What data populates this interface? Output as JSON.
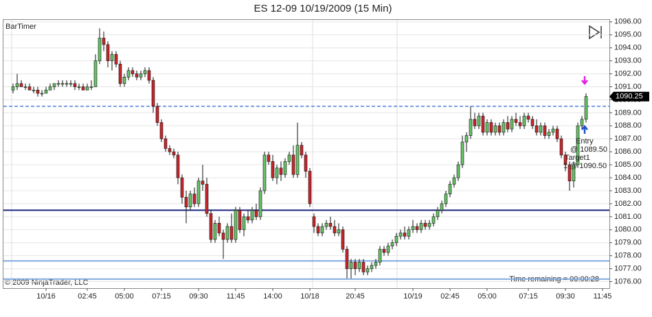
{
  "chart_data": {
    "type": "candlestick",
    "title": "ES 12-09  10/19/2009 (15 Min)",
    "indicator_label": "BarTimer",
    "copyright": "© 2009 NinjaTrader, LLC",
    "timer_text": "Time remaining = 00:00:28",
    "up_color": "#66c266",
    "down_color": "#c8262c",
    "ylim": [
      1075.5,
      1096.15
    ],
    "yticks": [
      {
        "value": 1076,
        "label": "1076.00"
      },
      {
        "value": 1077,
        "label": "1077.00"
      },
      {
        "value": 1078,
        "label": "1078.00"
      },
      {
        "value": 1079,
        "label": "1079.00"
      },
      {
        "value": 1080,
        "label": "1080.00"
      },
      {
        "value": 1081,
        "label": "1081.00"
      },
      {
        "value": 1082,
        "label": "1082.00"
      },
      {
        "value": 1083,
        "label": "1083.00"
      },
      {
        "value": 1084,
        "label": "1084.00"
      },
      {
        "value": 1085,
        "label": "1085.00"
      },
      {
        "value": 1086,
        "label": "1086.00"
      },
      {
        "value": 1087,
        "label": "1087.00"
      },
      {
        "value": 1088,
        "label": "1088.00"
      },
      {
        "value": 1089,
        "label": "1089.00"
      },
      {
        "value": 1090,
        "label": "1090.00"
      },
      {
        "value": 1091,
        "label": "1091.00"
      },
      {
        "value": 1092,
        "label": "1092.00"
      },
      {
        "value": 1093,
        "label": "1093.00"
      },
      {
        "value": 1094,
        "label": "1094.00"
      },
      {
        "value": 1095,
        "label": "1095.00"
      },
      {
        "value": 1096,
        "label": "1096.00"
      }
    ],
    "grid": true,
    "last_price": {
      "value": 1090.25,
      "label": "1090.25"
    },
    "levels": [
      {
        "value": 1089.5,
        "color": "#4a7fd9",
        "dashed": true
      },
      {
        "value": 1081.5,
        "color": "#1a237e",
        "dashed": false
      },
      {
        "value": 1077.6,
        "color": "#7fa8e0",
        "dashed": false
      },
      {
        "value": 1076.2,
        "color": "#7fa8e0",
        "dashed": false
      }
    ],
    "annotations": {
      "entry": "Entry",
      "entry_price": "@ 1089.50",
      "target": "Target1",
      "target_price": "1 @ 1090.50"
    },
    "categories": [
      null,
      null,
      null,
      null,
      null,
      null,
      null,
      null,
      "10/16",
      null,
      null,
      null,
      null,
      null,
      null,
      null,
      null,
      null,
      "02:45",
      null,
      null,
      null,
      null,
      null,
      null,
      null,
      null,
      "05:00",
      null,
      null,
      null,
      null,
      null,
      null,
      null,
      null,
      "07:15",
      null,
      null,
      null,
      null,
      null,
      null,
      null,
      null,
      "09:30",
      null,
      null,
      null,
      null,
      null,
      null,
      null,
      null,
      "11:45",
      null,
      null,
      null,
      null,
      null,
      null,
      null,
      null,
      "14:00",
      null,
      null,
      null,
      null,
      null,
      null,
      null,
      null,
      "10/18",
      null,
      null,
      null,
      null,
      null,
      null,
      null,
      null,
      null,
      null,
      "20:45",
      null,
      null,
      null,
      null,
      null,
      null,
      null,
      null,
      null,
      null,
      null,
      null,
      null,
      "10/19",
      null,
      null,
      null,
      null,
      null,
      null,
      null,
      null,
      "02:45",
      null,
      null,
      null,
      null,
      null,
      null,
      null,
      null,
      "05:00",
      null,
      null,
      null,
      null,
      null,
      null,
      null,
      null,
      null,
      "07:15",
      null,
      null,
      null,
      null,
      null,
      null,
      null,
      null,
      "09:30",
      null,
      null,
      null,
      null,
      null,
      null,
      null,
      null,
      "11:45"
    ],
    "ohlc": [
      [
        1090.75,
        1091.25,
        1090.5,
        1091.0
      ],
      [
        1091.0,
        1092.0,
        1090.75,
        1091.25
      ],
      [
        1091.25,
        1091.5,
        1091.0,
        1091.0
      ],
      [
        1091.0,
        1091.25,
        1090.75,
        1091.0
      ],
      [
        1091.0,
        1091.25,
        1090.75,
        1090.75
      ],
      [
        1090.75,
        1091.0,
        1090.5,
        1090.75
      ],
      [
        1090.75,
        1091.0,
        1090.25,
        1090.5
      ],
      [
        1090.5,
        1090.75,
        1090.25,
        1090.5
      ],
      [
        1090.5,
        1091.0,
        1090.5,
        1090.75
      ],
      [
        1090.75,
        1091.25,
        1090.75,
        1091.0
      ],
      [
        1091.0,
        1091.25,
        1090.75,
        1091.25
      ],
      [
        1091.25,
        1091.5,
        1091.0,
        1091.25
      ],
      [
        1091.25,
        1091.5,
        1091.0,
        1091.25
      ],
      [
        1091.25,
        1091.5,
        1091.0,
        1091.25
      ],
      [
        1091.25,
        1091.5,
        1091.0,
        1091.25
      ],
      [
        1091.25,
        1091.5,
        1090.75,
        1091.0
      ],
      [
        1091.0,
        1091.25,
        1090.75,
        1091.0
      ],
      [
        1091.0,
        1091.25,
        1090.75,
        1090.75
      ],
      [
        1090.75,
        1091.25,
        1090.75,
        1091.0
      ],
      [
        1091.0,
        1091.5,
        1090.75,
        1091.0
      ],
      [
        1091.0,
        1093.5,
        1091.0,
        1093.0
      ],
      [
        1093.0,
        1095.5,
        1092.75,
        1094.75
      ],
      [
        1094.75,
        1095.25,
        1093.75,
        1094.25
      ],
      [
        1094.25,
        1094.5,
        1092.5,
        1093.0
      ],
      [
        1093.0,
        1093.75,
        1092.25,
        1093.5
      ],
      [
        1093.5,
        1093.75,
        1092.5,
        1092.75
      ],
      [
        1092.75,
        1093.0,
        1091.0,
        1091.25
      ],
      [
        1091.25,
        1092.0,
        1091.0,
        1091.75
      ],
      [
        1091.75,
        1092.5,
        1091.5,
        1092.25
      ],
      [
        1092.25,
        1092.5,
        1091.75,
        1092.0
      ],
      [
        1092.0,
        1092.25,
        1091.5,
        1091.75
      ],
      [
        1091.75,
        1092.25,
        1091.5,
        1092.0
      ],
      [
        1092.0,
        1092.5,
        1091.75,
        1092.25
      ],
      [
        1092.25,
        1092.5,
        1091.25,
        1091.5
      ],
      [
        1091.5,
        1091.75,
        1089.0,
        1089.5
      ],
      [
        1089.5,
        1089.75,
        1088.0,
        1088.25
      ],
      [
        1088.25,
        1088.5,
        1086.75,
        1087.0
      ],
      [
        1087.0,
        1087.25,
        1086.0,
        1086.25
      ],
      [
        1086.25,
        1086.5,
        1085.75,
        1086.0
      ],
      [
        1086.0,
        1086.25,
        1085.5,
        1085.75
      ],
      [
        1085.75,
        1086.0,
        1083.5,
        1084.0
      ],
      [
        1084.0,
        1084.25,
        1082.0,
        1082.5
      ],
      [
        1082.5,
        1083.0,
        1080.5,
        1081.75
      ],
      [
        1081.75,
        1083.0,
        1081.5,
        1082.75
      ],
      [
        1082.75,
        1083.25,
        1081.75,
        1082.0
      ],
      [
        1082.0,
        1084.0,
        1081.75,
        1083.75
      ],
      [
        1083.75,
        1085.0,
        1083.0,
        1083.5
      ],
      [
        1083.5,
        1084.0,
        1081.0,
        1081.25
      ],
      [
        1081.25,
        1081.5,
        1079.0,
        1079.25
      ],
      [
        1079.25,
        1080.75,
        1079.0,
        1080.5
      ],
      [
        1080.5,
        1081.0,
        1079.5,
        1079.75
      ],
      [
        1079.75,
        1080.0,
        1077.75,
        1079.25
      ],
      [
        1079.25,
        1080.5,
        1079.0,
        1080.25
      ],
      [
        1080.25,
        1081.25,
        1079.0,
        1079.25
      ],
      [
        1079.25,
        1081.75,
        1079.0,
        1081.5
      ],
      [
        1081.5,
        1081.75,
        1079.75,
        1080.0
      ],
      [
        1080.0,
        1081.25,
        1079.5,
        1081.0
      ],
      [
        1081.0,
        1081.5,
        1080.5,
        1080.75
      ],
      [
        1080.75,
        1081.75,
        1080.5,
        1081.5
      ],
      [
        1081.5,
        1082.0,
        1080.75,
        1081.0
      ],
      [
        1081.0,
        1083.25,
        1080.75,
        1083.0
      ],
      [
        1083.0,
        1086.0,
        1082.75,
        1085.75
      ],
      [
        1085.75,
        1086.0,
        1085.0,
        1085.25
      ],
      [
        1085.25,
        1085.75,
        1083.75,
        1084.0
      ],
      [
        1084.0,
        1085.0,
        1083.5,
        1084.75
      ],
      [
        1084.75,
        1085.25,
        1083.75,
        1084.25
      ],
      [
        1084.25,
        1085.5,
        1084.0,
        1085.25
      ],
      [
        1085.25,
        1086.0,
        1085.0,
        1085.75
      ],
      [
        1085.75,
        1086.5,
        1084.0,
        1084.25
      ],
      [
        1084.25,
        1088.25,
        1084.0,
        1086.5
      ],
      [
        1086.5,
        1086.75,
        1085.5,
        1085.75
      ],
      [
        1085.75,
        1086.0,
        1084.0,
        1084.5
      ],
      [
        1084.5,
        1084.75,
        1081.75,
        1082.0
      ],
      [
        1081.0,
        1081.25,
        1079.75,
        1080.25
      ],
      [
        1080.25,
        1080.5,
        1079.5,
        1079.75
      ],
      [
        1079.75,
        1080.5,
        1079.5,
        1080.25
      ],
      [
        1080.25,
        1080.75,
        1080.0,
        1080.5
      ],
      [
        1080.5,
        1081.0,
        1080.0,
        1080.25
      ],
      [
        1080.25,
        1080.75,
        1079.5,
        1079.75
      ],
      [
        1079.75,
        1080.5,
        1079.5,
        1080.0
      ],
      [
        1080.0,
        1080.25,
        1078.25,
        1078.5
      ],
      [
        1078.5,
        1078.75,
        1076.25,
        1077.0
      ],
      [
        1077.0,
        1077.75,
        1076.25,
        1077.5
      ],
      [
        1077.5,
        1077.75,
        1076.5,
        1077.0
      ],
      [
        1077.0,
        1077.75,
        1076.75,
        1077.5
      ],
      [
        1077.5,
        1077.75,
        1076.5,
        1076.75
      ],
      [
        1076.75,
        1077.25,
        1076.5,
        1077.0
      ],
      [
        1077.0,
        1077.5,
        1076.75,
        1077.25
      ],
      [
        1077.25,
        1077.75,
        1077.0,
        1077.5
      ],
      [
        1077.5,
        1078.75,
        1077.25,
        1078.5
      ],
      [
        1078.5,
        1078.75,
        1078.0,
        1078.25
      ],
      [
        1078.25,
        1079.0,
        1078.0,
        1078.75
      ],
      [
        1078.75,
        1079.25,
        1078.5,
        1079.0
      ],
      [
        1079.0,
        1079.75,
        1078.75,
        1079.5
      ],
      [
        1079.5,
        1080.0,
        1079.25,
        1079.75
      ],
      [
        1079.75,
        1080.25,
        1079.25,
        1079.5
      ],
      [
        1079.5,
        1080.25,
        1079.25,
        1080.0
      ],
      [
        1080.0,
        1080.75,
        1079.75,
        1080.25
      ],
      [
        1080.25,
        1080.5,
        1079.75,
        1080.0
      ],
      [
        1080.0,
        1080.75,
        1079.75,
        1080.5
      ],
      [
        1080.5,
        1080.75,
        1080.0,
        1080.25
      ],
      [
        1080.25,
        1080.75,
        1080.0,
        1080.5
      ],
      [
        1080.5,
        1081.25,
        1080.25,
        1081.0
      ],
      [
        1081.0,
        1081.75,
        1080.75,
        1081.5
      ],
      [
        1081.5,
        1082.25,
        1081.25,
        1082.0
      ],
      [
        1082.0,
        1083.0,
        1081.75,
        1082.75
      ],
      [
        1082.75,
        1083.75,
        1082.5,
        1083.5
      ],
      [
        1083.5,
        1084.25,
        1083.25,
        1084.0
      ],
      [
        1084.0,
        1085.25,
        1083.75,
        1085.0
      ],
      [
        1085.0,
        1087.25,
        1084.75,
        1086.75
      ],
      [
        1086.75,
        1087.5,
        1086.0,
        1087.25
      ],
      [
        1087.25,
        1089.5,
        1087.0,
        1088.5
      ],
      [
        1088.5,
        1089.0,
        1087.75,
        1088.0
      ],
      [
        1088.0,
        1089.0,
        1087.75,
        1088.75
      ],
      [
        1088.75,
        1089.0,
        1087.25,
        1087.5
      ],
      [
        1087.5,
        1088.5,
        1087.25,
        1088.25
      ],
      [
        1088.25,
        1088.5,
        1087.25,
        1087.5
      ],
      [
        1087.5,
        1088.25,
        1087.25,
        1088.0
      ],
      [
        1088.0,
        1088.25,
        1087.25,
        1087.5
      ],
      [
        1087.5,
        1088.5,
        1087.25,
        1088.25
      ],
      [
        1088.25,
        1088.75,
        1087.5,
        1087.75
      ],
      [
        1087.75,
        1088.75,
        1087.5,
        1088.5
      ],
      [
        1088.5,
        1089.0,
        1088.0,
        1088.25
      ],
      [
        1088.25,
        1088.75,
        1087.75,
        1088.0
      ],
      [
        1088.0,
        1089.0,
        1087.75,
        1088.75
      ],
      [
        1088.75,
        1089.0,
        1088.25,
        1088.5
      ],
      [
        1088.5,
        1088.75,
        1087.75,
        1088.0
      ],
      [
        1088.0,
        1088.5,
        1087.25,
        1087.5
      ],
      [
        1087.5,
        1088.25,
        1087.25,
        1088.0
      ],
      [
        1088.0,
        1088.25,
        1087.0,
        1087.25
      ],
      [
        1087.25,
        1087.75,
        1087.0,
        1087.5
      ],
      [
        1087.5,
        1088.0,
        1087.25,
        1087.75
      ],
      [
        1087.75,
        1088.0,
        1086.75,
        1087.0
      ],
      [
        1087.0,
        1087.25,
        1085.5,
        1085.75
      ],
      [
        1085.75,
        1086.0,
        1084.5,
        1085.0
      ],
      [
        1085.0,
        1085.25,
        1083.0,
        1083.75
      ],
      [
        1083.75,
        1085.25,
        1083.25,
        1085.0
      ],
      [
        1085.0,
        1088.25,
        1084.75,
        1088.0
      ],
      [
        1088.0,
        1088.75,
        1087.75,
        1088.5
      ],
      [
        1088.5,
        1090.5,
        1088.25,
        1090.25
      ],
      null,
      null,
      null,
      null
    ]
  }
}
